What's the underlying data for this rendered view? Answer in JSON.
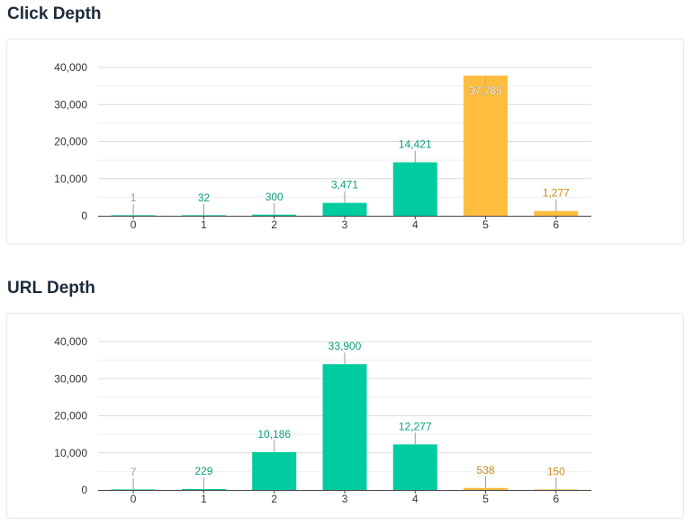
{
  "sections": [
    {
      "title": "Click Depth"
    },
    {
      "title": "URL Depth"
    }
  ],
  "colors": {
    "green": "#00cc9f",
    "orange": "#ffbd3f",
    "gray_label": "#9a9a9a",
    "green_label": "#0b9e7c",
    "orange_label": "#cc8a1a",
    "grid": "#dcdcdc",
    "axis": "#444444"
  },
  "chart_data": [
    {
      "type": "bar",
      "title": "Click Depth",
      "categories": [
        "0",
        "1",
        "2",
        "3",
        "4",
        "5",
        "6"
      ],
      "values": [
        1,
        32,
        300,
        3471,
        14421,
        37785,
        1277
      ],
      "value_labels": [
        "1",
        "32",
        "300",
        "3,471",
        "14,421",
        "37,785",
        "1,277"
      ],
      "bar_colors": [
        "green",
        "green",
        "green",
        "green",
        "green",
        "orange",
        "orange"
      ],
      "label_colors": [
        "gray",
        "green",
        "green",
        "green",
        "green",
        "white",
        "orange"
      ],
      "yticks": [
        0,
        10000,
        20000,
        30000,
        40000
      ],
      "ytick_labels": [
        "0",
        "10,000",
        "20,000",
        "30,000",
        "40,000"
      ],
      "ylim": [
        0,
        40000
      ],
      "grid": true,
      "legend": "none"
    },
    {
      "type": "bar",
      "title": "URL Depth",
      "categories": [
        "0",
        "1",
        "2",
        "3",
        "4",
        "5",
        "6"
      ],
      "values": [
        7,
        229,
        10186,
        33900,
        12277,
        538,
        150
      ],
      "value_labels": [
        "7",
        "229",
        "10,186",
        "33,900",
        "12,277",
        "538",
        "150"
      ],
      "bar_colors": [
        "green",
        "green",
        "green",
        "green",
        "green",
        "orange",
        "orange"
      ],
      "label_colors": [
        "gray",
        "green",
        "green",
        "green",
        "green",
        "orange",
        "orange"
      ],
      "yticks": [
        0,
        10000,
        20000,
        30000,
        40000
      ],
      "ytick_labels": [
        "0",
        "10,000",
        "20,000",
        "30,000",
        "40,000"
      ],
      "ylim": [
        0,
        40000
      ],
      "grid": true,
      "legend": "none"
    }
  ]
}
